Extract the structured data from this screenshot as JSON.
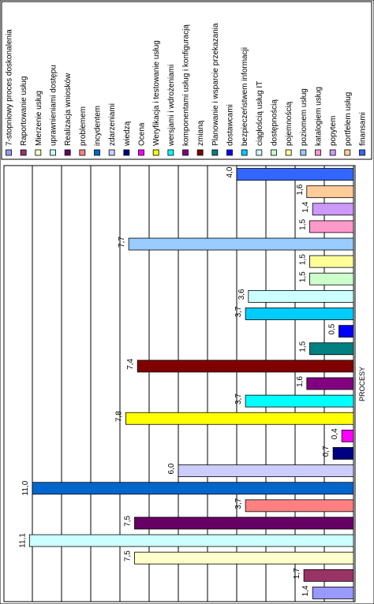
{
  "chart_data": {
    "type": "bar",
    "orientation": "horizontal",
    "xlabel": "PROCESY",
    "ylabel": "",
    "title": "",
    "xlim": [
      0,
      11
    ],
    "grid": true,
    "legend_position": "top",
    "series": [
      {
        "name": "7-stopniowy proces doskonalenia",
        "value": 1.4,
        "label": "1,4",
        "color": "#9999ff"
      },
      {
        "name": "Raportowanie usług",
        "value": 1.7,
        "label": "1,7",
        "color": "#993366"
      },
      {
        "name": "Mierzenie usług",
        "value": 7.5,
        "label": "7,5",
        "color": "#ffffcc"
      },
      {
        "name": "uprawnieniami dostępu",
        "value": 11.1,
        "label": "11,1",
        "color": "#ccffff"
      },
      {
        "name": "Realizacja wniosków",
        "value": 7.5,
        "label": "7,5",
        "color": "#660066"
      },
      {
        "name": "problemem",
        "value": 3.7,
        "label": "3,7",
        "color": "#ff8080"
      },
      {
        "name": "incydentem",
        "value": 11.0,
        "label": "11,0",
        "color": "#0066cc"
      },
      {
        "name": "zdarzeniami",
        "value": 6.0,
        "label": "6,0",
        "color": "#ccccff"
      },
      {
        "name": "wiedzą",
        "value": 0.7,
        "label": "0,7",
        "color": "#000080"
      },
      {
        "name": "Ocena",
        "value": 0.4,
        "label": "0,4",
        "color": "#ff00ff"
      },
      {
        "name": "Weryfikacja i testowanie usług",
        "value": 7.8,
        "label": "7,8",
        "color": "#ffff00"
      },
      {
        "name": "wersjami i wdrożeniami",
        "value": 3.7,
        "label": "3,7",
        "color": "#00ffff"
      },
      {
        "name": "komponentami usług i konfiguracją",
        "value": 1.6,
        "label": "1,6",
        "color": "#800080"
      },
      {
        "name": "zmianą",
        "value": 7.4,
        "label": "7,4",
        "color": "#800000"
      },
      {
        "name": "Planowanie i wsparcie przekazania",
        "value": 1.5,
        "label": "1,5",
        "color": "#008080"
      },
      {
        "name": "dostawcami",
        "value": 0.5,
        "label": "0,5",
        "color": "#0000ff"
      },
      {
        "name": "bezpieczeństwem informacji",
        "value": 3.7,
        "label": "3,7",
        "color": "#00ccff"
      },
      {
        "name": "ciągłością usług IT",
        "value": 3.6,
        "label": "3,6",
        "color": "#ccffff"
      },
      {
        "name": "dostępnością",
        "value": 1.5,
        "label": "1,5",
        "color": "#ccffcc"
      },
      {
        "name": "pojemnością",
        "value": 1.5,
        "label": "1,5",
        "color": "#ffff99"
      },
      {
        "name": "poziomem usług",
        "value": 7.7,
        "label": "7,7",
        "color": "#99ccff"
      },
      {
        "name": "katalogiem usług",
        "value": 1.5,
        "label": "1,5",
        "color": "#ff99cc"
      },
      {
        "name": "popytem",
        "value": 1.4,
        "label": "1,4",
        "color": "#cc99ff"
      },
      {
        "name": "portfelem usług",
        "value": 1.6,
        "label": "1,6",
        "color": "#ffcc99"
      },
      {
        "name": "finansami",
        "value": 4.0,
        "label": "4,0",
        "color": "#3366ff"
      }
    ]
  }
}
